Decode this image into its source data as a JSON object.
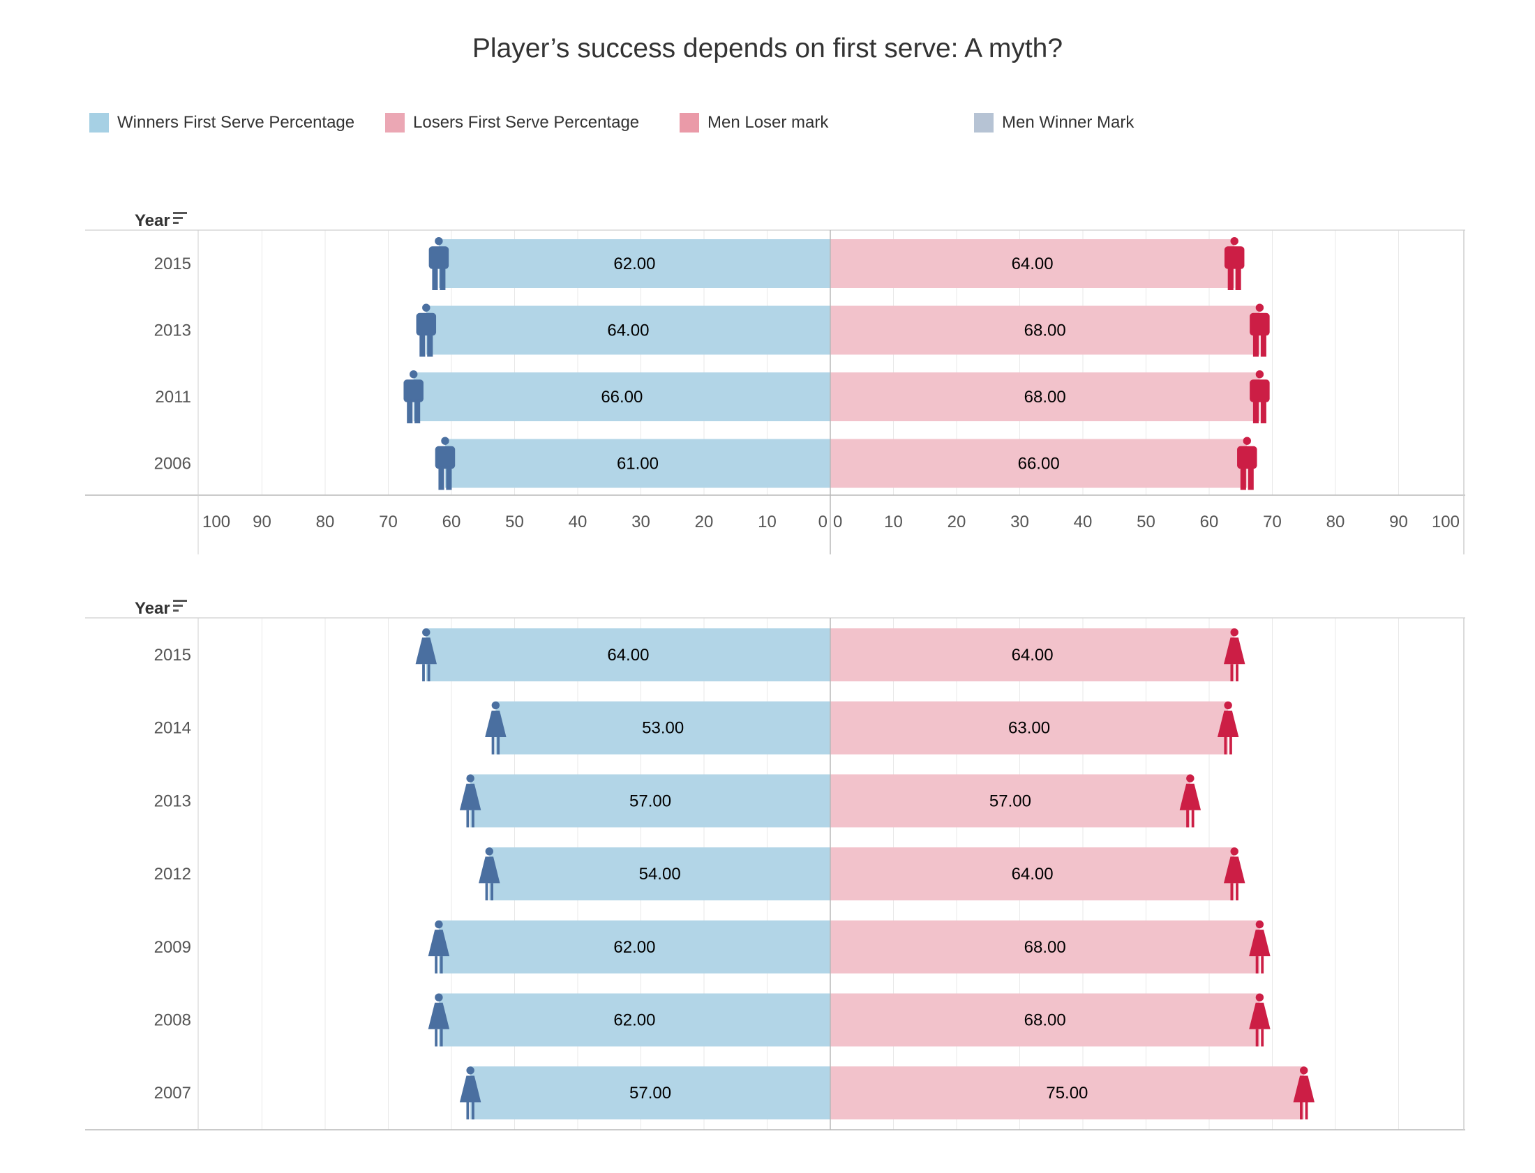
{
  "title": "Player’s success depends on first serve: A myth?",
  "legend": [
    {
      "label": "Winners First Serve Percentage",
      "color": "#a6d0e4"
    },
    {
      "label": "Losers First Serve Percentage",
      "color": "#eba7b4"
    },
    {
      "label": "Men Loser mark",
      "color": "#ea9aa8"
    },
    {
      "label": "Men Winner Mark",
      "color": "#b6c3d4"
    }
  ],
  "colors": {
    "winner_bar": "#b2d5e7",
    "loser_bar": "#f2c2cb",
    "winner_icon": "#4a6fa0",
    "loser_icon": "#cc1e45"
  },
  "chart_data": [
    {
      "type": "bar",
      "row_label": "Year",
      "icon": "male-figure-icon",
      "categories": [
        "2015",
        "2013",
        "2011",
        "2006"
      ],
      "series": [
        {
          "name": "Winners First Serve Percentage",
          "values": [
            62,
            64,
            66,
            61
          ]
        },
        {
          "name": "Losers First Serve Percentage",
          "values": [
            64,
            68,
            68,
            66
          ]
        }
      ],
      "x_ticks_left": [
        "100",
        "90",
        "80",
        "70",
        "60",
        "50",
        "40",
        "30",
        "20",
        "10",
        "0"
      ],
      "x_ticks_right": [
        "0",
        "10",
        "20",
        "30",
        "40",
        "50",
        "60",
        "70",
        "80",
        "90",
        "100"
      ],
      "xlim": [
        0,
        100
      ]
    },
    {
      "type": "bar",
      "row_label": "Year",
      "icon": "female-figure-icon",
      "categories": [
        "2015",
        "2014",
        "2013",
        "2012",
        "2009",
        "2008",
        "2007"
      ],
      "series": [
        {
          "name": "Winners First Serve Percentage",
          "values": [
            64,
            53,
            57,
            54,
            62,
            62,
            57
          ]
        },
        {
          "name": "Losers First Serve Percentage",
          "values": [
            64,
            63,
            57,
            64,
            68,
            68,
            75
          ]
        }
      ],
      "xlim": [
        0,
        100
      ]
    }
  ]
}
